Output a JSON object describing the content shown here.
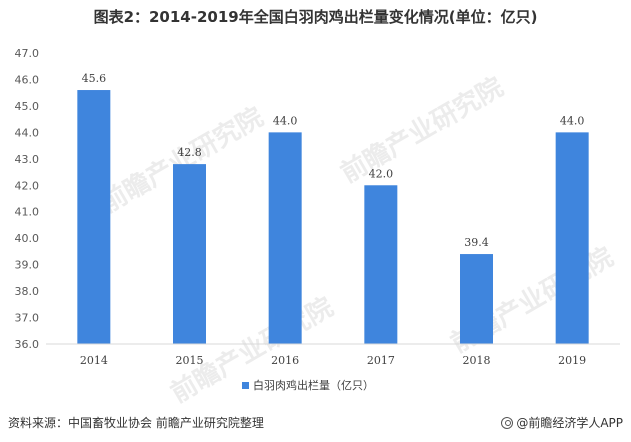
{
  "title": "图表2：2014-2019年全国白羽肉鸡出栏量变化情况(单位：亿只)",
  "source": "资料来源：中国畜牧业协会 前瞻产业研究院整理",
  "brand": "@前瞻经济学人APP",
  "watermark": "前瞻产业研究院",
  "colors": {
    "bar": "#3f85dd",
    "axis": "#d9d9d9"
  },
  "chart_data": {
    "type": "bar",
    "categories": [
      "2014",
      "2015",
      "2016",
      "2017",
      "2018",
      "2019"
    ],
    "series": [
      {
        "name": "白羽肉鸡出栏量（亿只）",
        "values": [
          45.6,
          42.8,
          44.0,
          42.0,
          39.4,
          44.0
        ]
      }
    ],
    "value_labels": [
      "45.6",
      "42.8",
      "44.0",
      "42.0",
      "39.4",
      "44.0"
    ],
    "ylim": [
      36.0,
      47.0
    ],
    "yticks": [
      "36.0",
      "37.0",
      "38.0",
      "39.0",
      "40.0",
      "41.0",
      "42.0",
      "43.0",
      "44.0",
      "45.0",
      "46.0",
      "47.0"
    ],
    "grid": false,
    "legend": "bottom-center"
  }
}
